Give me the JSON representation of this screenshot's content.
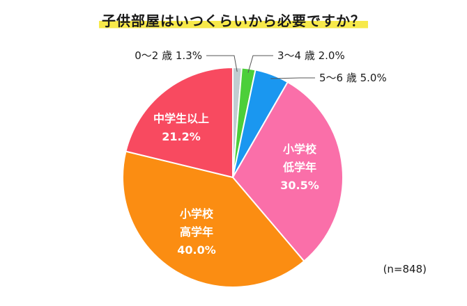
{
  "title": "子供部屋はいつくらいから必要ですか？",
  "sample_size": "(n=848)",
  "chart_data": {
    "type": "pie",
    "title": "子供部屋はいつくらいから必要ですか？",
    "note": "(n=848)",
    "slices": [
      {
        "label": "0〜2 歳",
        "value": 1.3,
        "display": "0〜2 歳 1.3%",
        "color": "#c0cdd1"
      },
      {
        "label": "3〜4 歳",
        "value": 2.0,
        "display": "3〜4 歳 2.0%",
        "color": "#4ccf3a"
      },
      {
        "label": "5〜6 歳",
        "value": 5.0,
        "display": "5〜6 歳 5.0%",
        "color": "#1a97f0"
      },
      {
        "label": "小学校 低学年",
        "value": 30.5,
        "lines": [
          "小学校",
          "低学年",
          "30.5%"
        ],
        "color": "#fa6fa9"
      },
      {
        "label": "小学校 高学年",
        "value": 40.0,
        "lines": [
          "小学校",
          "高学年",
          "40.0%"
        ],
        "color": "#fb8d12"
      },
      {
        "label": "中学生以上",
        "value": 21.2,
        "lines": [
          "中学生以上",
          "21.2%"
        ],
        "color": "#f84a60"
      }
    ]
  }
}
